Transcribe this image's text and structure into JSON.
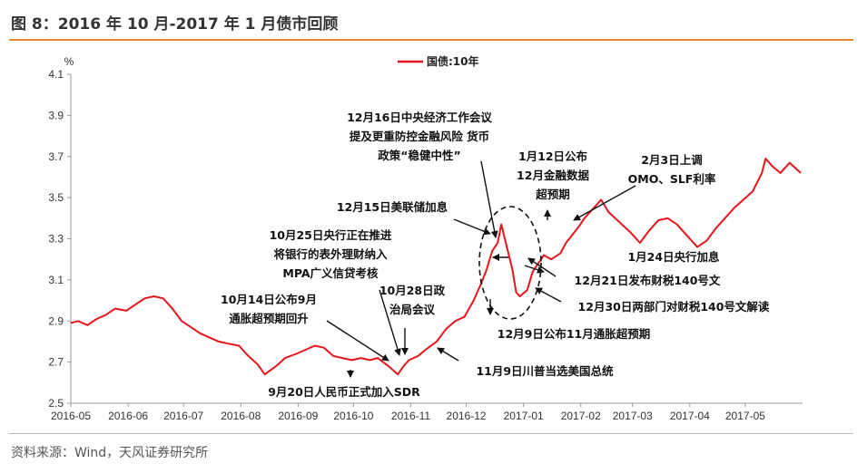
{
  "title": "图 8：2016 年 10 月-2017 年 1 月债市回顾",
  "source": "资料来源：Wind，天风证券研究所",
  "colors": {
    "line": "#e8141c",
    "accent": "#e58b2d"
  },
  "chart_data": {
    "type": "line",
    "title": "",
    "unit_label": "%",
    "xlabel": "",
    "ylabel": "",
    "ylim": [
      2.5,
      4.1
    ],
    "yticks": [
      "4.1",
      "3.9",
      "3.7",
      "3.5",
      "3.3",
      "3.1",
      "2.9",
      "2.7",
      "2.5"
    ],
    "xticks": [
      "2016-05",
      "2016-06",
      "2016-07",
      "2016-08",
      "2016-09",
      "2016-10",
      "2016-11",
      "2016-12",
      "2017-01",
      "2017-02",
      "2017-03",
      "2017-04",
      "2017-05"
    ],
    "legend": {
      "position": "top-center"
    },
    "series": [
      {
        "name": "国债:10年",
        "color": "#e8141c",
        "points": [
          [
            "2016-05-01",
            2.89
          ],
          [
            "2016-05-05",
            2.9
          ],
          [
            "2016-05-10",
            2.88
          ],
          [
            "2016-05-15",
            2.91
          ],
          [
            "2016-05-20",
            2.93
          ],
          [
            "2016-05-25",
            2.96
          ],
          [
            "2016-05-31",
            2.95
          ],
          [
            "2016-06-05",
            2.98
          ],
          [
            "2016-06-10",
            3.01
          ],
          [
            "2016-06-15",
            3.02
          ],
          [
            "2016-06-20",
            3.01
          ],
          [
            "2016-06-25",
            2.96
          ],
          [
            "2016-06-30",
            2.9
          ],
          [
            "2016-07-05",
            2.87
          ],
          [
            "2016-07-10",
            2.84
          ],
          [
            "2016-07-15",
            2.82
          ],
          [
            "2016-07-20",
            2.8
          ],
          [
            "2016-07-25",
            2.79
          ],
          [
            "2016-07-31",
            2.78
          ],
          [
            "2016-08-05",
            2.73
          ],
          [
            "2016-08-10",
            2.69
          ],
          [
            "2016-08-14",
            2.64
          ],
          [
            "2016-08-20",
            2.68
          ],
          [
            "2016-08-25",
            2.72
          ],
          [
            "2016-08-31",
            2.74
          ],
          [
            "2016-09-05",
            2.76
          ],
          [
            "2016-09-10",
            2.78
          ],
          [
            "2016-09-15",
            2.77
          ],
          [
            "2016-09-20",
            2.73
          ],
          [
            "2016-09-25",
            2.72
          ],
          [
            "2016-09-30",
            2.71
          ],
          [
            "2016-10-05",
            2.72
          ],
          [
            "2016-10-10",
            2.71
          ],
          [
            "2016-10-14",
            2.72
          ],
          [
            "2016-10-20",
            2.68
          ],
          [
            "2016-10-25",
            2.64
          ],
          [
            "2016-10-28",
            2.68
          ],
          [
            "2016-10-31",
            2.71
          ],
          [
            "2016-11-05",
            2.73
          ],
          [
            "2016-11-09",
            2.76
          ],
          [
            "2016-11-15",
            2.8
          ],
          [
            "2016-11-20",
            2.86
          ],
          [
            "2016-11-25",
            2.9
          ],
          [
            "2016-11-30",
            2.92
          ],
          [
            "2016-12-05",
            3.0
          ],
          [
            "2016-12-09",
            3.08
          ],
          [
            "2016-12-12",
            3.15
          ],
          [
            "2016-12-15",
            3.24
          ],
          [
            "2016-12-18",
            3.28
          ],
          [
            "2016-12-20",
            3.37
          ],
          [
            "2016-12-23",
            3.26
          ],
          [
            "2016-12-26",
            3.15
          ],
          [
            "2016-12-28",
            3.04
          ],
          [
            "2016-12-30",
            3.02
          ],
          [
            "2017-01-03",
            3.05
          ],
          [
            "2017-01-06",
            3.14
          ],
          [
            "2017-01-09",
            3.18
          ],
          [
            "2017-01-12",
            3.22
          ],
          [
            "2017-01-16",
            3.2
          ],
          [
            "2017-01-21",
            3.23
          ],
          [
            "2017-01-24",
            3.28
          ],
          [
            "2017-01-31",
            3.36
          ],
          [
            "2017-02-03",
            3.4
          ],
          [
            "2017-02-08",
            3.45
          ],
          [
            "2017-02-12",
            3.49
          ],
          [
            "2017-02-16",
            3.43
          ],
          [
            "2017-02-22",
            3.38
          ],
          [
            "2017-02-28",
            3.33
          ],
          [
            "2017-03-05",
            3.28
          ],
          [
            "2017-03-10",
            3.34
          ],
          [
            "2017-03-15",
            3.39
          ],
          [
            "2017-03-20",
            3.4
          ],
          [
            "2017-03-25",
            3.37
          ],
          [
            "2017-03-31",
            3.31
          ],
          [
            "2017-04-05",
            3.26
          ],
          [
            "2017-04-10",
            3.29
          ],
          [
            "2017-04-15",
            3.35
          ],
          [
            "2017-04-20",
            3.4
          ],
          [
            "2017-04-25",
            3.45
          ],
          [
            "2017-04-30",
            3.49
          ],
          [
            "2017-05-05",
            3.53
          ],
          [
            "2017-05-10",
            3.62
          ],
          [
            "2017-05-12",
            3.69
          ],
          [
            "2017-05-16",
            3.65
          ],
          [
            "2017-05-20",
            3.62
          ],
          [
            "2017-05-25",
            3.67
          ],
          [
            "2017-05-31",
            3.62
          ]
        ]
      }
    ],
    "annotations": [
      {
        "lines": [
          "12月16日中央经济工作会议",
          "提及更重防控金融风险 货币",
          "政策“稳健中性”"
        ]
      },
      {
        "lines": [
          "12月15日美联储加息"
        ]
      },
      {
        "lines": [
          "10月25日央行正在推进",
          "将银行的表外理财纳入",
          "MPA广义信贷考核"
        ]
      },
      {
        "lines": [
          "10月14日公布9月",
          "通胀超预期回升"
        ]
      },
      {
        "lines": [
          "10月28日政",
          "治局会议"
        ]
      },
      {
        "lines": [
          "9月20日人民币正式加入SDR"
        ]
      },
      {
        "lines": [
          "11月9日川普当选美国总统"
        ]
      },
      {
        "lines": [
          "12月9日公布11月通胀超预期"
        ]
      },
      {
        "lines": [
          "1月12日公布",
          "12月金融数据",
          "超预期"
        ]
      },
      {
        "lines": [
          "2月3日上调",
          "OMO、SLF利率"
        ]
      },
      {
        "lines": [
          "1月24日央行加息"
        ]
      },
      {
        "lines": [
          "12月21日发布财税140号文"
        ]
      },
      {
        "lines": [
          "12月30日两部门对财税140号文解读"
        ]
      }
    ]
  }
}
